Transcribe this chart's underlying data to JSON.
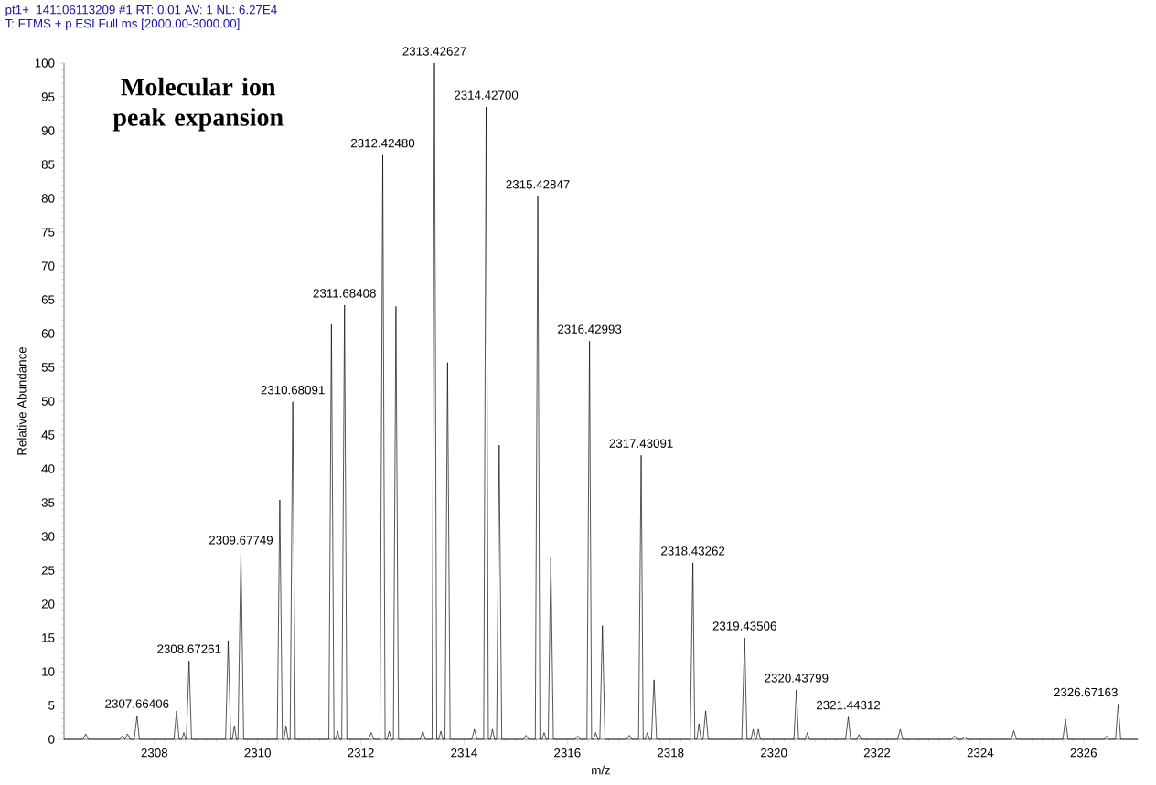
{
  "chart_data": {
    "type": "line",
    "title": "pt1+_141106113209 #1   RT: 0.01   AV: 1   NL: 6.27E4",
    "subtitle": "T: FTMS + p ESI Full ms [2000.00-3000.00]",
    "xlabel": "m/z",
    "ylabel": "Relative Abundance",
    "xlim": [
      2306.25,
      2327.05
    ],
    "ylim": [
      0,
      100
    ],
    "xticks": [
      2308,
      2310,
      2312,
      2314,
      2316,
      2318,
      2320,
      2322,
      2324,
      2326
    ],
    "yticks": [
      0,
      5,
      10,
      15,
      20,
      25,
      30,
      35,
      40,
      45,
      50,
      55,
      60,
      65,
      70,
      75,
      80,
      85,
      90,
      95,
      100
    ],
    "series": [
      {
        "color": "#000000",
        "x": [
          2306.25,
          2306.62,
          2306.67,
          2306.72,
          2307.33,
          2307.38,
          2307.43,
          2307.43,
          2307.48,
          2307.53,
          2307.61,
          2307.66406,
          2307.71,
          2308.38,
          2308.43,
          2308.48,
          2308.53,
          2308.57,
          2308.61,
          2308.62,
          2308.67261,
          2308.72,
          2309.38,
          2309.43,
          2309.48,
          2309.51,
          2309.55,
          2309.59,
          2309.62,
          2309.67749,
          2309.73,
          2310.38,
          2310.43,
          2310.48,
          2310.51,
          2310.55,
          2310.59,
          2310.63,
          2310.68091,
          2310.73,
          2311.38,
          2311.43,
          2311.48,
          2311.51,
          2311.55,
          2311.59,
          2311.63,
          2311.68408,
          2311.73,
          2312.15,
          2312.2,
          2312.25,
          2312.37,
          2312.4248,
          2312.47,
          2312.51,
          2312.55,
          2312.59,
          2312.63,
          2312.68,
          2312.73,
          2313.15,
          2313.2,
          2313.25,
          2313.38,
          2313.42627,
          2313.47,
          2313.51,
          2313.55,
          2313.59,
          2313.63,
          2313.68,
          2313.73,
          2314.15,
          2314.2,
          2314.25,
          2314.38,
          2314.427,
          2314.47,
          2314.51,
          2314.55,
          2314.59,
          2314.63,
          2314.68,
          2314.73,
          2315.15,
          2315.2,
          2315.25,
          2315.38,
          2315.42847,
          2315.47,
          2315.51,
          2315.55,
          2315.59,
          2315.63,
          2315.68,
          2315.73,
          2316.15,
          2316.2,
          2316.25,
          2316.38,
          2316.42993,
          2316.47,
          2316.51,
          2316.55,
          2316.59,
          2316.63,
          2316.68,
          2316.73,
          2317.15,
          2317.2,
          2317.25,
          2317.38,
          2317.43091,
          2317.47,
          2317.51,
          2317.55,
          2317.59,
          2317.63,
          2317.68,
          2317.73,
          2318.38,
          2318.43262,
          2318.47,
          2318.51,
          2318.55,
          2318.59,
          2318.63,
          2318.68,
          2318.73,
          2319.38,
          2319.43506,
          2319.48,
          2319.56,
          2319.6,
          2319.64,
          2319.66,
          2319.7,
          2319.74,
          2320.39,
          2320.43799,
          2320.48,
          2320.61,
          2320.65,
          2320.69,
          2321.39,
          2321.44312,
          2321.49,
          2321.61,
          2321.65,
          2321.69,
          2322.4,
          2322.45,
          2322.5,
          2323.45,
          2323.5,
          2323.55,
          2323.65,
          2323.7,
          2323.75,
          2324.6,
          2324.65,
          2324.7,
          2325.6,
          2325.65,
          2325.7,
          2326.41,
          2326.45,
          2326.49,
          2326.62,
          2326.67163,
          2326.72,
          2327.05
        ],
        "values": [
          0,
          0,
          0.8,
          0,
          0,
          0.5,
          0,
          0,
          0.8,
          0,
          0,
          3.5,
          0,
          0,
          4.2,
          0,
          0,
          1.0,
          0,
          0,
          11.6,
          0,
          0,
          14.6,
          0,
          0,
          2,
          0,
          0,
          27.7,
          0,
          0,
          35.4,
          0,
          0,
          2,
          0,
          0,
          49.9,
          0,
          0,
          61.5,
          0,
          0,
          1.2,
          0,
          0,
          64.2,
          0,
          0,
          1,
          0,
          0,
          86.4,
          0,
          0,
          1.2,
          0,
          0,
          64,
          0,
          0,
          1.2,
          0,
          0,
          100,
          0,
          0,
          1.2,
          0,
          0,
          55.7,
          0,
          0,
          1.5,
          0,
          0,
          93.5,
          0,
          0,
          1.5,
          0,
          0,
          43.5,
          0,
          0,
          0.6,
          0,
          0,
          80.3,
          0,
          0,
          1,
          0,
          0,
          27,
          0,
          0,
          0.5,
          0,
          0,
          58.9,
          0,
          0,
          1,
          0,
          0,
          16.8,
          0,
          0,
          0.6,
          0,
          0,
          42,
          0,
          0,
          1,
          0,
          0,
          8.8,
          0,
          0,
          26.1,
          0,
          0,
          2.3,
          0,
          0,
          4.2,
          0,
          0,
          15,
          0,
          0,
          1.5,
          0,
          0,
          1.5,
          0,
          0,
          7.3,
          0,
          0,
          1,
          0,
          0,
          3.3,
          0,
          0,
          0.7,
          0,
          0,
          1.5,
          0,
          0,
          0.5,
          0,
          0,
          0.4,
          0,
          0,
          1.3,
          0,
          0,
          3,
          0,
          0,
          0.5,
          0,
          0,
          5.2,
          0,
          0
        ]
      }
    ],
    "annotations": [
      "**Molecular ion peak expansion**",
      {
        "text": "2307.66406",
        "x": 2307.66406,
        "y": 3.5
      },
      {
        "text": "2308.67261",
        "x": 2308.67261,
        "y": 11.6
      },
      {
        "text": "2309.67749",
        "x": 2309.67749,
        "y": 27.7
      },
      {
        "text": "2310.68091",
        "x": 2310.68091,
        "y": 49.9
      },
      {
        "text": "2311.68408",
        "x": 2311.68408,
        "y": 64.2
      },
      {
        "text": "2312.42480",
        "x": 2312.4248,
        "y": 86.4
      },
      {
        "text": "2313.42627",
        "x": 2313.42627,
        "y": 100
      },
      {
        "text": "2314.42700",
        "x": 2314.427,
        "y": 93.5
      },
      {
        "text": "2315.42847",
        "x": 2315.42847,
        "y": 80.3
      },
      {
        "text": "2316.42993",
        "x": 2316.42993,
        "y": 58.9
      },
      {
        "text": "2317.43091",
        "x": 2317.43091,
        "y": 42
      },
      {
        "text": "2318.43262",
        "x": 2318.43262,
        "y": 26.1
      },
      {
        "text": "2319.43506",
        "x": 2319.43506,
        "y": 15
      },
      {
        "text": "2320.43799",
        "x": 2320.43799,
        "y": 7.3
      },
      {
        "text": "2321.44312",
        "x": 2321.44312,
        "y": 3.3
      },
      {
        "text": "2326.67163",
        "x": 2326.67163,
        "y": 5.2
      }
    ]
  }
}
